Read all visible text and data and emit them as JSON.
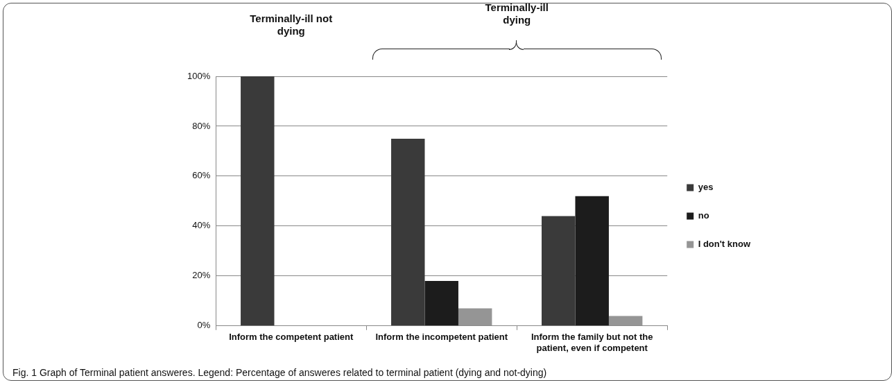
{
  "chart_data": {
    "type": "bar",
    "categories": [
      "Inform the competent patient",
      "Inform the incompetent patient",
      "Inform the family but not the patient, even if competent"
    ],
    "series": [
      {
        "name": "yes",
        "color": "#3a3a3a",
        "values": [
          100,
          75,
          44
        ]
      },
      {
        "name": "no",
        "color": "#1c1c1c",
        "values": [
          0,
          18,
          52
        ]
      },
      {
        "name": "I don't know",
        "color": "#959595",
        "values": [
          0,
          7,
          4
        ]
      }
    ],
    "ylim": [
      0,
      100
    ],
    "yticks": [
      {
        "value": 0,
        "label": "0%"
      },
      {
        "value": 20,
        "label": "20%"
      },
      {
        "value": 40,
        "label": "40%"
      },
      {
        "value": 60,
        "label": "60%"
      },
      {
        "value": 80,
        "label": "80%"
      },
      {
        "value": 100,
        "label": "100%"
      }
    ],
    "grid": "y",
    "legend": "right",
    "annotations": [
      "Terminally-ill not dying",
      "Terminally-ill dying",
      "Fig. 1 Graph of Terminal patient answeres. Legend: Percentage of answeres related to terminal patient (dying and not-dying)"
    ]
  }
}
